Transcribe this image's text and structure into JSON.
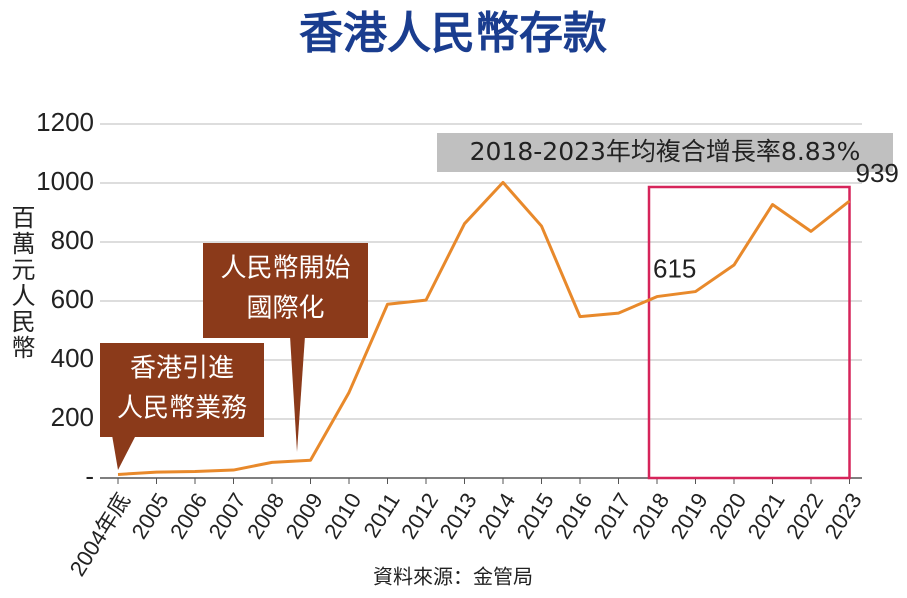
{
  "chart_data": {
    "type": "line",
    "title": "香港人民幣存款",
    "y_label": "百萬元人民幣",
    "source": "資料來源：金管局",
    "categories": [
      "2004年底",
      "2005",
      "2006",
      "2007",
      "2008",
      "2009",
      "2010",
      "2011",
      "2012",
      "2013",
      "2014",
      "2015",
      "2016",
      "2017",
      "2018",
      "2019",
      "2020",
      "2021",
      "2022",
      "2023"
    ],
    "series": [
      {
        "name": "香港人民幣存款",
        "color": "#e8892b",
        "values": [
          12,
          20,
          22,
          27,
          53,
          60,
          290,
          589,
          603,
          862,
          1002,
          854,
          547,
          559,
          615,
          632,
          722,
          927,
          836,
          939
        ],
        "value_labels": [
          null,
          null,
          null,
          null,
          null,
          null,
          null,
          null,
          null,
          null,
          null,
          null,
          null,
          null,
          "615",
          null,
          null,
          null,
          null,
          "939"
        ]
      }
    ],
    "ylim": [
      0,
      1200
    ],
    "yticks": [
      {
        "value": 0,
        "label": "-"
      },
      200,
      400,
      600,
      800,
      1000,
      1200
    ],
    "grid": true,
    "highlight": {
      "from": "2018",
      "to": "2023",
      "color": "#d6245a",
      "label": "2018-2023年均複合增長率8.83%"
    },
    "annotations": [
      {
        "lines": [
          "香港引進",
          "人民幣業務"
        ],
        "color": "#8b3a1a"
      },
      {
        "lines": [
          "人民幣開始",
          "國際化"
        ],
        "color": "#8b3a1a"
      }
    ]
  }
}
